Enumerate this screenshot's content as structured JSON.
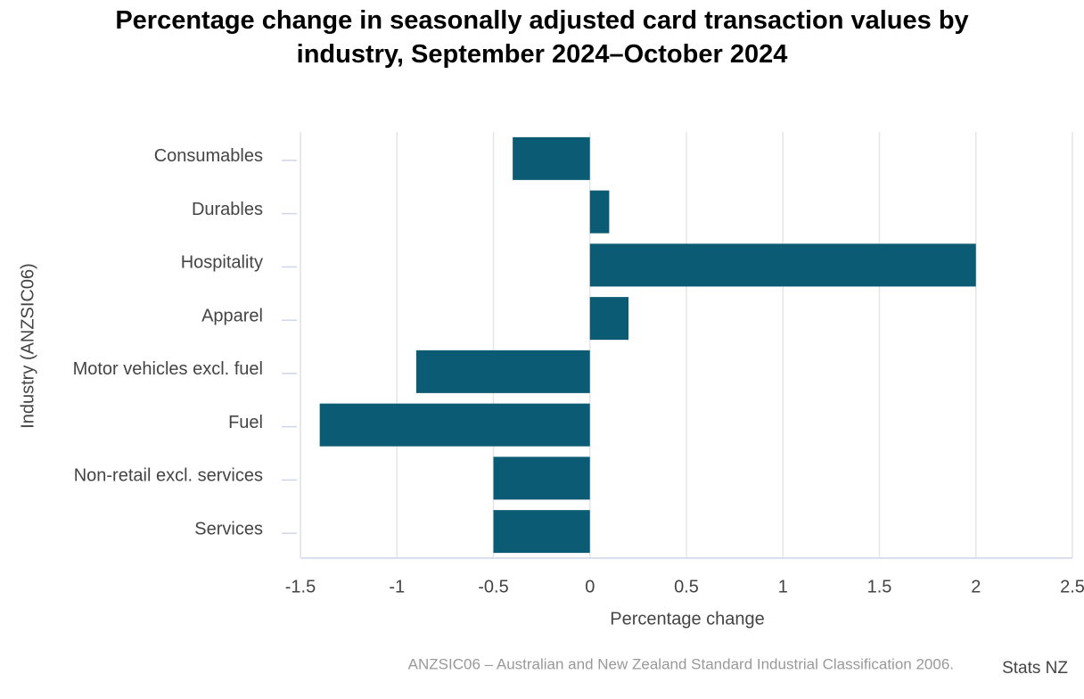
{
  "chart_data": {
    "type": "barh",
    "title": "Percentage change in seasonally adjusted card transaction values by industry, September 2024–October 2024",
    "categories": [
      "Consumables",
      "Durables",
      "Hospitality",
      "Apparel",
      "Motor vehicles excl. fuel",
      "Fuel",
      "Non-retail excl. services",
      "Services"
    ],
    "values": [
      -0.4,
      0.1,
      2.0,
      0.2,
      -0.9,
      -1.4,
      -0.5,
      -0.5
    ],
    "color": "#0b5b74",
    "xlabel": "Percentage change",
    "ylabel": "Industry (ANZSIC06)",
    "xlim": [
      -1.5,
      2.5
    ],
    "xticks": [
      -1.5,
      -1,
      -0.5,
      0,
      0.5,
      1,
      1.5,
      2,
      2.5
    ],
    "grid": true,
    "note": "ANZSIC06 – Australian and New Zealand Standard Industrial Classification 2006.",
    "credit": "Stats NZ"
  }
}
